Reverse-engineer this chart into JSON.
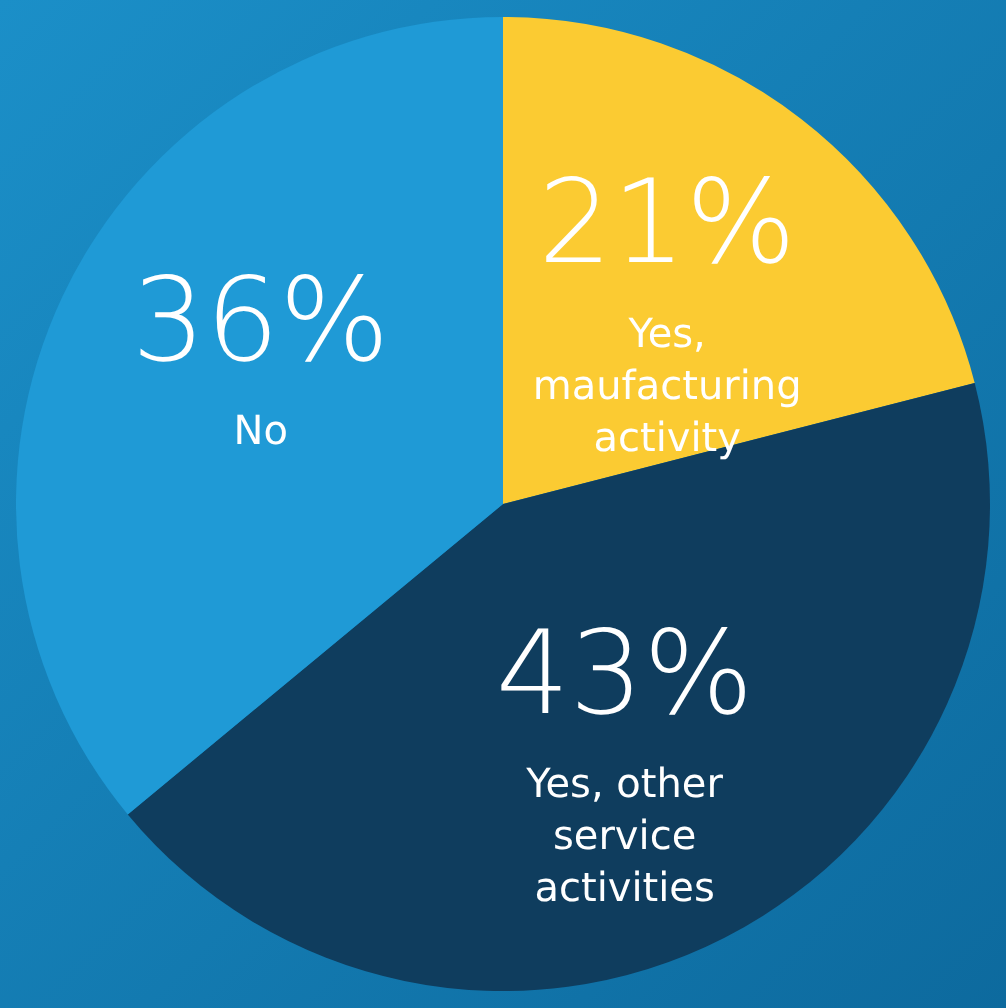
{
  "chart_data": {
    "type": "pie",
    "categories": [
      "Yes, maufacturing activity",
      "Yes, other service activities",
      "No"
    ],
    "values": [
      21,
      43,
      36
    ],
    "value_labels": [
      "21%",
      "43%",
      "36%"
    ],
    "colors": [
      "#fbcb32",
      "#0f3d5e",
      "#1f9ad6"
    ],
    "legend": false
  }
}
